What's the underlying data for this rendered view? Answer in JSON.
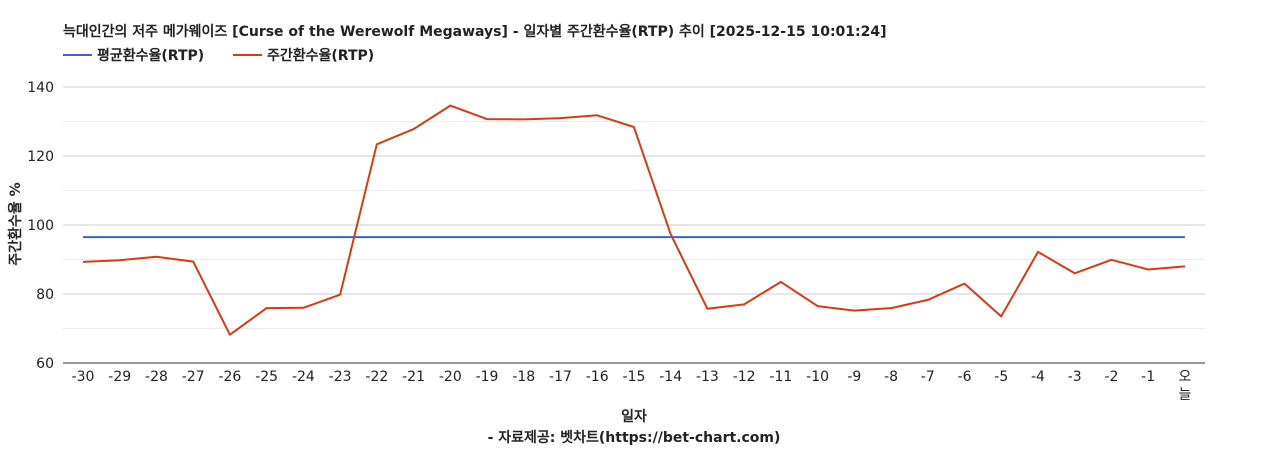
{
  "chart_data": {
    "type": "line",
    "title": "늑대인간의 저주 메가웨이즈 [Curse of the Werewolf Megaways] - 일자별 주간환수율(RTP) 추이 [2025-12-15 10:01:24]",
    "xlabel": "일자",
    "ylabel": "주간환수율 %",
    "source": "- 자료제공: 벳차트(https://bet-chart.com)",
    "ylim": [
      60,
      140
    ],
    "yticks": [
      60,
      80,
      100,
      120,
      140
    ],
    "grid": true,
    "legend_position": "top-left",
    "categories": [
      "-30",
      "-29",
      "-28",
      "-27",
      "-26",
      "-25",
      "-24",
      "-23",
      "-22",
      "-21",
      "-20",
      "-19",
      "-18",
      "-17",
      "-16",
      "-15",
      "-14",
      "-13",
      "-12",
      "-11",
      "-10",
      "-9",
      "-8",
      "-7",
      "-6",
      "-5",
      "-4",
      "-3",
      "-2",
      "-1",
      "오늘"
    ],
    "series": [
      {
        "name": "평균환수율(RTP)",
        "color": "#3366cc",
        "values": [
          96.5,
          96.5,
          96.5,
          96.5,
          96.5,
          96.5,
          96.5,
          96.5,
          96.5,
          96.5,
          96.5,
          96.5,
          96.5,
          96.5,
          96.5,
          96.5,
          96.5,
          96.5,
          96.5,
          96.5,
          96.5,
          96.5,
          96.5,
          96.5,
          96.5,
          96.5,
          96.5,
          96.5,
          96.5,
          96.5,
          96.5
        ]
      },
      {
        "name": "주간환수율(RTP)",
        "color": "#dc3912",
        "values": [
          89.3,
          89.8,
          90.8,
          89.4,
          68.2,
          75.9,
          76.0,
          79.8,
          123.4,
          127.8,
          134.6,
          130.7,
          130.6,
          131.0,
          131.8,
          128.4,
          97.3,
          75.7,
          77.0,
          83.5,
          76.5,
          75.2,
          75.9,
          78.3,
          83.0,
          73.5,
          92.2,
          86.0,
          89.9,
          87.1,
          88.0
        ]
      }
    ]
  }
}
